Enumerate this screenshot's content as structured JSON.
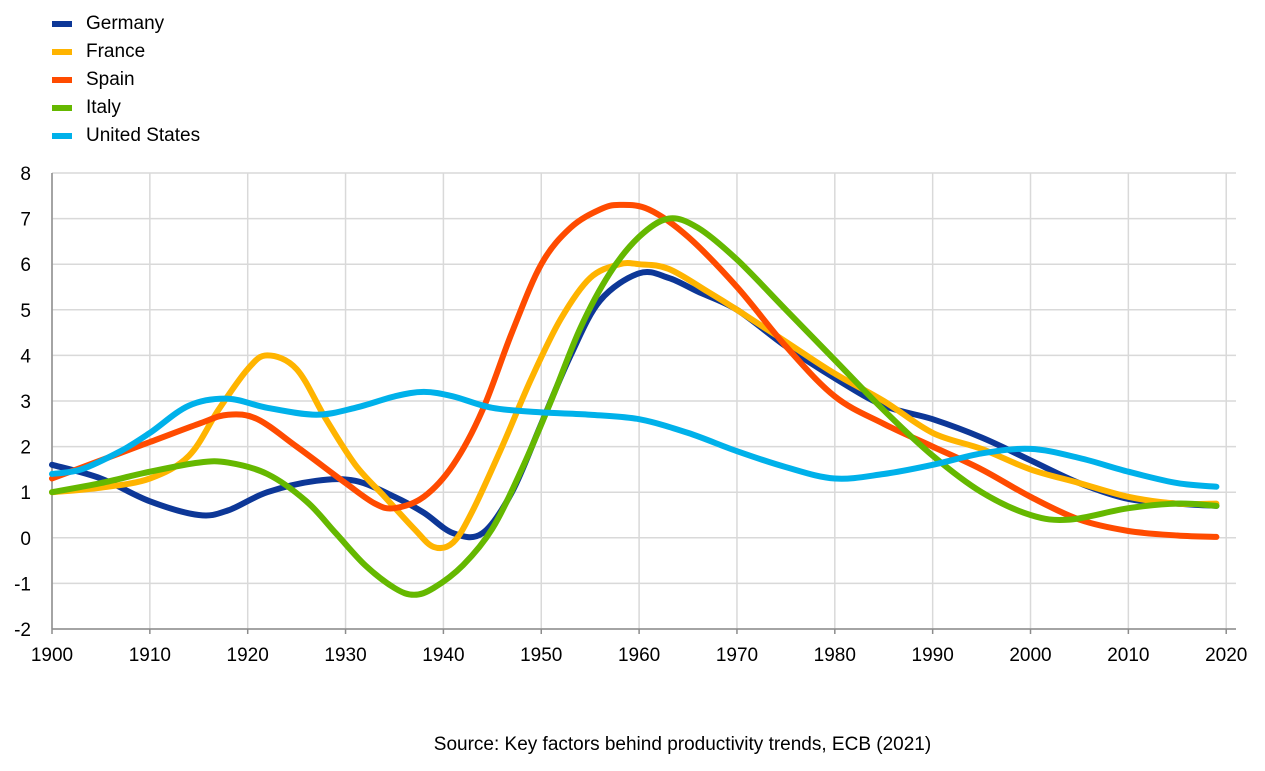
{
  "chart_data": {
    "type": "line",
    "x_ticks": [
      1900,
      1910,
      1920,
      1930,
      1940,
      1950,
      1960,
      1970,
      1980,
      1990,
      2000,
      2010,
      2020
    ],
    "y_ticks": [
      -2,
      -1,
      0,
      1,
      2,
      3,
      4,
      5,
      6,
      7,
      8
    ],
    "xlim": [
      1900,
      2021
    ],
    "ylim": [
      -2,
      8
    ],
    "grid": true,
    "legend_position": "top-left",
    "series": [
      {
        "name": "Germany",
        "color": "#0d3797",
        "points": [
          [
            1900,
            1.6
          ],
          [
            1905,
            1.3
          ],
          [
            1910,
            0.8
          ],
          [
            1915,
            0.5
          ],
          [
            1918,
            0.6
          ],
          [
            1922,
            1.0
          ],
          [
            1927,
            1.25
          ],
          [
            1931,
            1.25
          ],
          [
            1935,
            0.9
          ],
          [
            1938,
            0.55
          ],
          [
            1941,
            0.1
          ],
          [
            1944,
            0.1
          ],
          [
            1947,
            1.0
          ],
          [
            1950,
            2.5
          ],
          [
            1953,
            4.0
          ],
          [
            1956,
            5.2
          ],
          [
            1960,
            5.8
          ],
          [
            1963,
            5.7
          ],
          [
            1966,
            5.4
          ],
          [
            1970,
            5.0
          ],
          [
            1975,
            4.2
          ],
          [
            1980,
            3.5
          ],
          [
            1985,
            2.9
          ],
          [
            1990,
            2.6
          ],
          [
            1995,
            2.2
          ],
          [
            2000,
            1.7
          ],
          [
            2005,
            1.2
          ],
          [
            2010,
            0.85
          ],
          [
            2015,
            0.75
          ],
          [
            2019,
            0.7
          ]
        ]
      },
      {
        "name": "France",
        "color": "#ffb400",
        "points": [
          [
            1900,
            1.0
          ],
          [
            1905,
            1.1
          ],
          [
            1910,
            1.3
          ],
          [
            1914,
            1.8
          ],
          [
            1917,
            2.8
          ],
          [
            1920,
            3.7
          ],
          [
            1922,
            4.0
          ],
          [
            1925,
            3.7
          ],
          [
            1928,
            2.6
          ],
          [
            1931,
            1.6
          ],
          [
            1934,
            0.9
          ],
          [
            1937,
            0.2
          ],
          [
            1939,
            -0.2
          ],
          [
            1941,
            -0.1
          ],
          [
            1943,
            0.6
          ],
          [
            1946,
            2.0
          ],
          [
            1949,
            3.5
          ],
          [
            1952,
            4.8
          ],
          [
            1955,
            5.7
          ],
          [
            1958,
            6.0
          ],
          [
            1960,
            6.0
          ],
          [
            1963,
            5.9
          ],
          [
            1967,
            5.4
          ],
          [
            1970,
            5.0
          ],
          [
            1975,
            4.3
          ],
          [
            1980,
            3.6
          ],
          [
            1985,
            3.0
          ],
          [
            1990,
            2.3
          ],
          [
            1995,
            1.95
          ],
          [
            2000,
            1.5
          ],
          [
            2005,
            1.2
          ],
          [
            2010,
            0.9
          ],
          [
            2015,
            0.75
          ],
          [
            2019,
            0.75
          ]
        ]
      },
      {
        "name": "Spain",
        "color": "#ff4b00",
        "points": [
          [
            1900,
            1.3
          ],
          [
            1905,
            1.7
          ],
          [
            1910,
            2.1
          ],
          [
            1915,
            2.5
          ],
          [
            1918,
            2.7
          ],
          [
            1921,
            2.6
          ],
          [
            1925,
            2.0
          ],
          [
            1930,
            1.2
          ],
          [
            1933,
            0.75
          ],
          [
            1935,
            0.65
          ],
          [
            1938,
            0.9
          ],
          [
            1941,
            1.6
          ],
          [
            1944,
            2.8
          ],
          [
            1947,
            4.5
          ],
          [
            1950,
            6.0
          ],
          [
            1953,
            6.8
          ],
          [
            1956,
            7.2
          ],
          [
            1958,
            7.3
          ],
          [
            1961,
            7.2
          ],
          [
            1965,
            6.6
          ],
          [
            1970,
            5.5
          ],
          [
            1975,
            4.2
          ],
          [
            1980,
            3.1
          ],
          [
            1985,
            2.5
          ],
          [
            1990,
            2.0
          ],
          [
            1995,
            1.5
          ],
          [
            2000,
            0.9
          ],
          [
            2005,
            0.4
          ],
          [
            2010,
            0.15
          ],
          [
            2015,
            0.05
          ],
          [
            2019,
            0.02
          ]
        ]
      },
      {
        "name": "Italy",
        "color": "#65b800",
        "points": [
          [
            1900,
            1.0
          ],
          [
            1905,
            1.2
          ],
          [
            1910,
            1.45
          ],
          [
            1915,
            1.65
          ],
          [
            1918,
            1.65
          ],
          [
            1922,
            1.4
          ],
          [
            1926,
            0.8
          ],
          [
            1929,
            0.1
          ],
          [
            1932,
            -0.6
          ],
          [
            1935,
            -1.1
          ],
          [
            1937,
            -1.25
          ],
          [
            1939,
            -1.1
          ],
          [
            1942,
            -0.6
          ],
          [
            1945,
            0.2
          ],
          [
            1948,
            1.5
          ],
          [
            1951,
            3.0
          ],
          [
            1954,
            4.6
          ],
          [
            1957,
            5.8
          ],
          [
            1960,
            6.6
          ],
          [
            1963,
            7.0
          ],
          [
            1966,
            6.8
          ],
          [
            1970,
            6.1
          ],
          [
            1975,
            5.0
          ],
          [
            1980,
            3.9
          ],
          [
            1985,
            2.8
          ],
          [
            1990,
            1.8
          ],
          [
            1995,
            1.0
          ],
          [
            2000,
            0.5
          ],
          [
            2004,
            0.4
          ],
          [
            2010,
            0.65
          ],
          [
            2015,
            0.75
          ],
          [
            2019,
            0.7
          ]
        ]
      },
      {
        "name": "United States",
        "color": "#00b1ea",
        "points": [
          [
            1900,
            1.4
          ],
          [
            1903,
            1.5
          ],
          [
            1907,
            1.9
          ],
          [
            1910,
            2.3
          ],
          [
            1914,
            2.9
          ],
          [
            1918,
            3.05
          ],
          [
            1922,
            2.85
          ],
          [
            1927,
            2.7
          ],
          [
            1931,
            2.85
          ],
          [
            1935,
            3.1
          ],
          [
            1938,
            3.2
          ],
          [
            1941,
            3.1
          ],
          [
            1945,
            2.85
          ],
          [
            1950,
            2.75
          ],
          [
            1955,
            2.7
          ],
          [
            1960,
            2.6
          ],
          [
            1965,
            2.3
          ],
          [
            1970,
            1.9
          ],
          [
            1975,
            1.55
          ],
          [
            1980,
            1.3
          ],
          [
            1985,
            1.4
          ],
          [
            1990,
            1.6
          ],
          [
            1995,
            1.85
          ],
          [
            2000,
            1.95
          ],
          [
            2005,
            1.75
          ],
          [
            2010,
            1.45
          ],
          [
            2015,
            1.2
          ],
          [
            2019,
            1.12
          ]
        ]
      }
    ]
  },
  "source": "Source: Key factors behind productivity trends, ECB (2021)"
}
